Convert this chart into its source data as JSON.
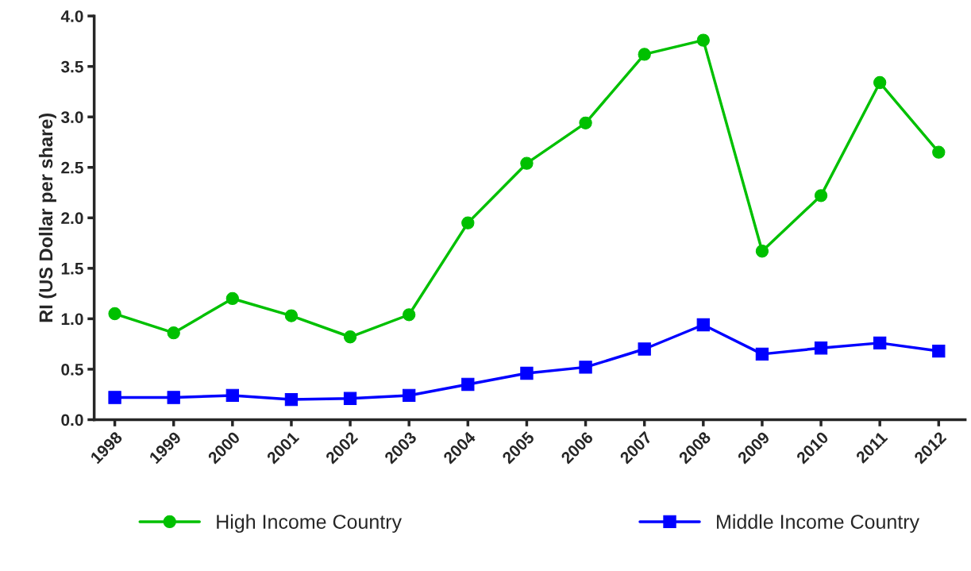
{
  "chart_data": {
    "type": "line",
    "ylabel": "RI (US Dollar per share)",
    "categories": [
      "1998",
      "1999",
      "2000",
      "2001",
      "2002",
      "2003",
      "2004",
      "2005",
      "2006",
      "2007",
      "2008",
      "2009",
      "2010",
      "2011",
      "2012"
    ],
    "series": [
      {
        "name": "High Income Country",
        "color": "#00c000",
        "marker": "circle",
        "values": [
          1.05,
          0.86,
          1.2,
          1.03,
          0.82,
          1.04,
          1.95,
          2.54,
          2.94,
          3.62,
          3.76,
          1.67,
          2.22,
          3.34,
          2.65
        ]
      },
      {
        "name": "Middle Income Country",
        "color": "#0000ff",
        "marker": "square",
        "values": [
          0.22,
          0.22,
          0.24,
          0.2,
          0.21,
          0.24,
          0.35,
          0.46,
          0.52,
          0.7,
          0.94,
          0.65,
          0.71,
          0.76,
          0.68
        ]
      }
    ],
    "ylim": [
      0,
      4.0
    ],
    "yticks": [
      {
        "value": 0,
        "label": "0.0"
      },
      {
        "value": 0.5,
        "label": "0.5"
      },
      {
        "value": 1.0,
        "label": "1.0"
      },
      {
        "value": 1.5,
        "label": "1.5"
      },
      {
        "value": 2.0,
        "label": "2.0"
      },
      {
        "value": 2.5,
        "label": "2.5"
      },
      {
        "value": 3.0,
        "label": "3.0"
      },
      {
        "value": 3.5,
        "label": "3.5"
      },
      {
        "value": 4.0,
        "label": "4.0"
      }
    ],
    "grid": false,
    "legend": "bottom",
    "line_style": "solid"
  }
}
